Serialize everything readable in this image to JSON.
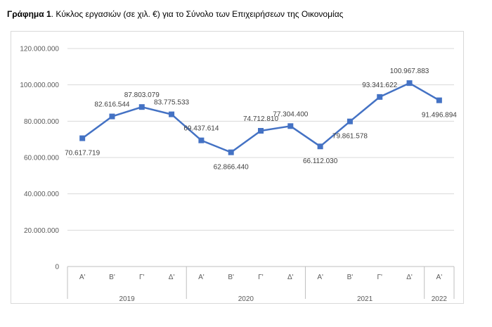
{
  "title": {
    "prefix": "Γράφημα 1",
    "text": ". Κύκλος εργασιών (σε χιλ. €) για το Σύνολο των Επιχειρήσεων της Οικονομίας"
  },
  "chart_data": {
    "type": "line",
    "title": "Γράφημα 1. Κύκλος εργασιών (σε χιλ. €) για το Σύνολο των Επιχειρήσεων της Οικονομίας",
    "xlabel": "",
    "ylabel": "",
    "ylim": [
      0,
      120000000
    ],
    "yticks": [
      0,
      20000000,
      40000000,
      60000000,
      80000000,
      100000000,
      120000000
    ],
    "ytick_labels": [
      "0",
      "20.000.000",
      "40.000.000",
      "60.000.000",
      "80.000.000",
      "100.000.000",
      "120.000.000"
    ],
    "grid": true,
    "legend": "none",
    "categories": [
      "Α'",
      "Β'",
      "Γ'",
      "Δ'",
      "Α'",
      "Β'",
      "Γ'",
      "Δ'",
      "Α'",
      "Β'",
      "Γ'",
      "Δ'",
      "Α'"
    ],
    "year_groups": [
      {
        "year": "2019",
        "count": 4
      },
      {
        "year": "2020",
        "count": 4
      },
      {
        "year": "2021",
        "count": 4
      },
      {
        "year": "2022",
        "count": 1
      }
    ],
    "series": [
      {
        "color": "#4472c4",
        "values": [
          70617719,
          82616544,
          87803079,
          83775533,
          69437614,
          62866440,
          74712810,
          77304400,
          66112030,
          79861578,
          93341622,
          100967883,
          91496894
        ],
        "labels": [
          "70.617.719",
          "82.616.544",
          "87.803.079",
          "83.775.533",
          "69.437.614",
          "62.866.440",
          "74.712.810",
          "77.304.400",
          "66.112.030",
          "79.861.578",
          "93.341.622",
          "100.967.883",
          "91.496.894"
        ],
        "label_pos": [
          "below",
          "above",
          "above",
          "above",
          "above",
          "below",
          "above",
          "above",
          "below",
          "below",
          "above",
          "above",
          "below"
        ]
      }
    ]
  }
}
